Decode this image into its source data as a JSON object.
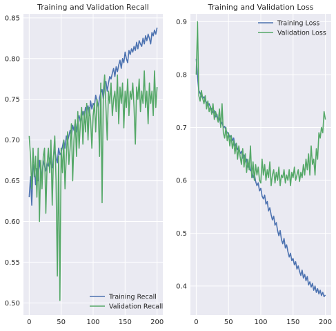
{
  "colors": {
    "training": "#4c72b0",
    "validation": "#55a868",
    "plot_background": "#eaeaf2",
    "grid": "#ffffff"
  },
  "chart_data": [
    {
      "type": "line",
      "title": "Training and Validation Recall",
      "xlabel": "",
      "ylabel": "",
      "xlim": [
        -9,
        209
      ],
      "ylim": [
        0.485,
        0.855
      ],
      "xticks": [
        0,
        50,
        100,
        150,
        200
      ],
      "yticks": [
        0.5,
        0.55,
        0.6,
        0.65,
        0.7,
        0.75,
        0.8,
        0.85
      ],
      "xtick_labels": [
        "0",
        "50",
        "100",
        "150",
        "200"
      ],
      "ytick_labels": [
        "0.50",
        "0.55",
        "0.60",
        "0.65",
        "0.70",
        "0.75",
        "0.80",
        "0.85"
      ],
      "grid": true,
      "legend_position": "bottom-right",
      "series": [
        {
          "name": "Training Recall",
          "color": "#4c72b0",
          "x": [
            0,
            2,
            4,
            6,
            8,
            10,
            12,
            14,
            16,
            18,
            20,
            22,
            24,
            26,
            28,
            30,
            32,
            34,
            36,
            38,
            40,
            42,
            44,
            46,
            48,
            50,
            52,
            54,
            56,
            58,
            60,
            62,
            64,
            66,
            68,
            70,
            72,
            74,
            76,
            78,
            80,
            82,
            84,
            86,
            88,
            90,
            92,
            94,
            96,
            98,
            100,
            102,
            104,
            106,
            108,
            110,
            112,
            114,
            116,
            118,
            120,
            122,
            124,
            126,
            128,
            130,
            132,
            134,
            136,
            138,
            140,
            142,
            144,
            146,
            148,
            150,
            152,
            154,
            156,
            158,
            160,
            162,
            164,
            166,
            168,
            170,
            172,
            174,
            176,
            178,
            180,
            182,
            184,
            186,
            188,
            190,
            192,
            194,
            196,
            198,
            200
          ],
          "y": [
            0.63,
            0.655,
            0.62,
            0.67,
            0.665,
            0.645,
            0.665,
            0.65,
            0.675,
            0.662,
            0.655,
            0.675,
            0.668,
            0.662,
            0.672,
            0.668,
            0.678,
            0.672,
            0.666,
            0.68,
            0.688,
            0.678,
            0.672,
            0.69,
            0.682,
            0.685,
            0.692,
            0.7,
            0.69,
            0.705,
            0.698,
            0.705,
            0.712,
            0.704,
            0.718,
            0.712,
            0.722,
            0.71,
            0.725,
            0.73,
            0.722,
            0.728,
            0.735,
            0.728,
            0.74,
            0.735,
            0.742,
            0.73,
            0.748,
            0.738,
            0.745,
            0.742,
            0.755,
            0.748,
            0.74,
            0.752,
            0.758,
            0.762,
            0.75,
            0.768,
            0.772,
            0.76,
            0.77,
            0.778,
            0.775,
            0.782,
            0.788,
            0.778,
            0.79,
            0.784,
            0.792,
            0.798,
            0.788,
            0.8,
            0.795,
            0.808,
            0.8,
            0.795,
            0.81,
            0.805,
            0.812,
            0.808,
            0.815,
            0.81,
            0.82,
            0.812,
            0.822,
            0.818,
            0.815,
            0.825,
            0.818,
            0.828,
            0.822,
            0.83,
            0.825,
            0.818,
            0.832,
            0.828,
            0.835,
            0.83,
            0.838
          ]
        },
        {
          "name": "Validation Recall",
          "color": "#55a868",
          "x": [
            0,
            2,
            4,
            6,
            8,
            10,
            12,
            14,
            16,
            18,
            20,
            22,
            24,
            26,
            28,
            30,
            32,
            34,
            36,
            38,
            40,
            42,
            44,
            46,
            48,
            50,
            52,
            54,
            56,
            58,
            60,
            62,
            64,
            66,
            68,
            70,
            72,
            74,
            76,
            78,
            80,
            82,
            84,
            86,
            88,
            90,
            92,
            94,
            96,
            98,
            100,
            102,
            104,
            106,
            108,
            110,
            112,
            114,
            116,
            118,
            120,
            122,
            124,
            126,
            128,
            130,
            132,
            134,
            136,
            138,
            140,
            142,
            144,
            146,
            148,
            150,
            152,
            154,
            156,
            158,
            160,
            162,
            164,
            166,
            168,
            170,
            172,
            174,
            176,
            178,
            180,
            182,
            184,
            186,
            188,
            190,
            192,
            194,
            196,
            198,
            200
          ],
          "y": [
            0.705,
            0.68,
            0.64,
            0.69,
            0.655,
            0.68,
            0.63,
            0.69,
            0.6,
            0.675,
            0.64,
            0.68,
            0.69,
            0.61,
            0.67,
            0.69,
            0.66,
            0.7,
            0.62,
            0.68,
            0.705,
            0.65,
            0.533,
            0.68,
            0.503,
            0.69,
            0.66,
            0.7,
            0.64,
            0.68,
            0.71,
            0.67,
            0.69,
            0.72,
            0.65,
            0.7,
            0.725,
            0.68,
            0.735,
            0.69,
            0.72,
            0.74,
            0.695,
            0.735,
            0.71,
            0.745,
            0.7,
            0.74,
            0.725,
            0.69,
            0.73,
            0.745,
            0.71,
            0.75,
            0.74,
            0.68,
            0.77,
            0.623,
            0.76,
            0.78,
            0.74,
            0.7,
            0.76,
            0.745,
            0.77,
            0.73,
            0.75,
            0.76,
            0.735,
            0.78,
            0.72,
            0.765,
            0.745,
            0.77,
            0.715,
            0.76,
            0.74,
            0.775,
            0.73,
            0.76,
            0.75,
            0.77,
            0.74,
            0.695,
            0.765,
            0.75,
            0.775,
            0.735,
            0.76,
            0.745,
            0.785,
            0.74,
            0.76,
            0.72,
            0.77,
            0.745,
            0.76,
            0.73,
            0.785,
            0.74,
            0.765
          ]
        }
      ]
    },
    {
      "type": "line",
      "title": "Training and Validation Loss",
      "xlabel": "",
      "ylabel": "",
      "xlim": [
        -9,
        209
      ],
      "ylim": [
        0.345,
        0.915
      ],
      "xticks": [
        0,
        50,
        100,
        150,
        200
      ],
      "yticks": [
        0.4,
        0.5,
        0.6,
        0.7,
        0.8,
        0.9
      ],
      "xtick_labels": [
        "0",
        "50",
        "100",
        "150",
        "200"
      ],
      "ytick_labels": [
        "0.4",
        "0.5",
        "0.6",
        "0.7",
        "0.8",
        "0.9"
      ],
      "grid": true,
      "legend_position": "top-right",
      "series": [
        {
          "name": "Training Loss",
          "color": "#4c72b0",
          "x": [
            0,
            2,
            4,
            6,
            8,
            10,
            12,
            14,
            16,
            18,
            20,
            22,
            24,
            26,
            28,
            30,
            32,
            34,
            36,
            38,
            40,
            42,
            44,
            46,
            48,
            50,
            52,
            54,
            56,
            58,
            60,
            62,
            64,
            66,
            68,
            70,
            72,
            74,
            76,
            78,
            80,
            82,
            84,
            86,
            88,
            90,
            92,
            94,
            96,
            98,
            100,
            102,
            104,
            106,
            108,
            110,
            112,
            114,
            116,
            118,
            120,
            122,
            124,
            126,
            128,
            130,
            132,
            134,
            136,
            138,
            140,
            142,
            144,
            146,
            148,
            150,
            152,
            154,
            156,
            158,
            160,
            162,
            164,
            166,
            168,
            170,
            172,
            174,
            176,
            178,
            180,
            182,
            184,
            186,
            188,
            190,
            192,
            194,
            196,
            198,
            200
          ],
          "y": [
            0.83,
            0.795,
            0.77,
            0.765,
            0.76,
            0.755,
            0.758,
            0.75,
            0.748,
            0.742,
            0.745,
            0.738,
            0.735,
            0.728,
            0.732,
            0.72,
            0.725,
            0.712,
            0.718,
            0.705,
            0.71,
            0.7,
            0.702,
            0.695,
            0.69,
            0.688,
            0.682,
            0.685,
            0.675,
            0.68,
            0.665,
            0.67,
            0.658,
            0.662,
            0.65,
            0.655,
            0.642,
            0.648,
            0.635,
            0.64,
            0.625,
            0.632,
            0.618,
            0.62,
            0.605,
            0.612,
            0.598,
            0.59,
            0.595,
            0.58,
            0.585,
            0.57,
            0.565,
            0.572,
            0.555,
            0.56,
            0.542,
            0.548,
            0.535,
            0.525,
            0.532,
            0.515,
            0.52,
            0.505,
            0.495,
            0.505,
            0.488,
            0.48,
            0.49,
            0.472,
            0.478,
            0.465,
            0.455,
            0.462,
            0.448,
            0.452,
            0.44,
            0.446,
            0.432,
            0.438,
            0.428,
            0.42,
            0.43,
            0.415,
            0.422,
            0.41,
            0.418,
            0.402,
            0.408,
            0.398,
            0.405,
            0.392,
            0.4,
            0.388,
            0.395,
            0.385,
            0.392,
            0.382,
            0.388,
            0.38,
            0.383
          ]
        },
        {
          "name": "Validation Loss",
          "color": "#55a868",
          "x": [
            0,
            2,
            4,
            6,
            8,
            10,
            12,
            14,
            16,
            18,
            20,
            22,
            24,
            26,
            28,
            30,
            32,
            34,
            36,
            38,
            40,
            42,
            44,
            46,
            48,
            50,
            52,
            54,
            56,
            58,
            60,
            62,
            64,
            66,
            68,
            70,
            72,
            74,
            76,
            78,
            80,
            82,
            84,
            86,
            88,
            90,
            92,
            94,
            96,
            98,
            100,
            102,
            104,
            106,
            108,
            110,
            112,
            114,
            116,
            118,
            120,
            122,
            124,
            126,
            128,
            130,
            132,
            134,
            136,
            138,
            140,
            142,
            144,
            146,
            148,
            150,
            152,
            154,
            156,
            158,
            160,
            162,
            164,
            166,
            168,
            170,
            172,
            174,
            176,
            178,
            180,
            182,
            184,
            186,
            188,
            190,
            192,
            194,
            196,
            198,
            200
          ],
          "y": [
            0.8,
            0.9,
            0.76,
            0.75,
            0.77,
            0.755,
            0.745,
            0.76,
            0.735,
            0.75,
            0.73,
            0.74,
            0.725,
            0.745,
            0.715,
            0.73,
            0.72,
            0.71,
            0.735,
            0.7,
            0.745,
            0.69,
            0.68,
            0.7,
            0.675,
            0.69,
            0.665,
            0.685,
            0.66,
            0.675,
            0.65,
            0.67,
            0.64,
            0.665,
            0.645,
            0.63,
            0.66,
            0.625,
            0.65,
            0.615,
            0.64,
            0.62,
            0.665,
            0.605,
            0.635,
            0.6,
            0.63,
            0.61,
            0.625,
            0.6,
            0.595,
            0.64,
            0.61,
            0.63,
            0.6,
            0.62,
            0.605,
            0.635,
            0.59,
            0.61,
            0.62,
            0.595,
            0.615,
            0.6,
            0.625,
            0.59,
            0.61,
            0.605,
            0.62,
            0.595,
            0.61,
            0.6,
            0.62,
            0.59,
            0.615,
            0.605,
            0.625,
            0.6,
            0.61,
            0.62,
            0.598,
            0.615,
            0.605,
            0.63,
            0.61,
            0.64,
            0.62,
            0.65,
            0.61,
            0.665,
            0.63,
            0.64,
            0.61,
            0.66,
            0.64,
            0.69,
            0.68,
            0.7,
            0.69,
            0.73,
            0.715
          ]
        }
      ]
    }
  ]
}
